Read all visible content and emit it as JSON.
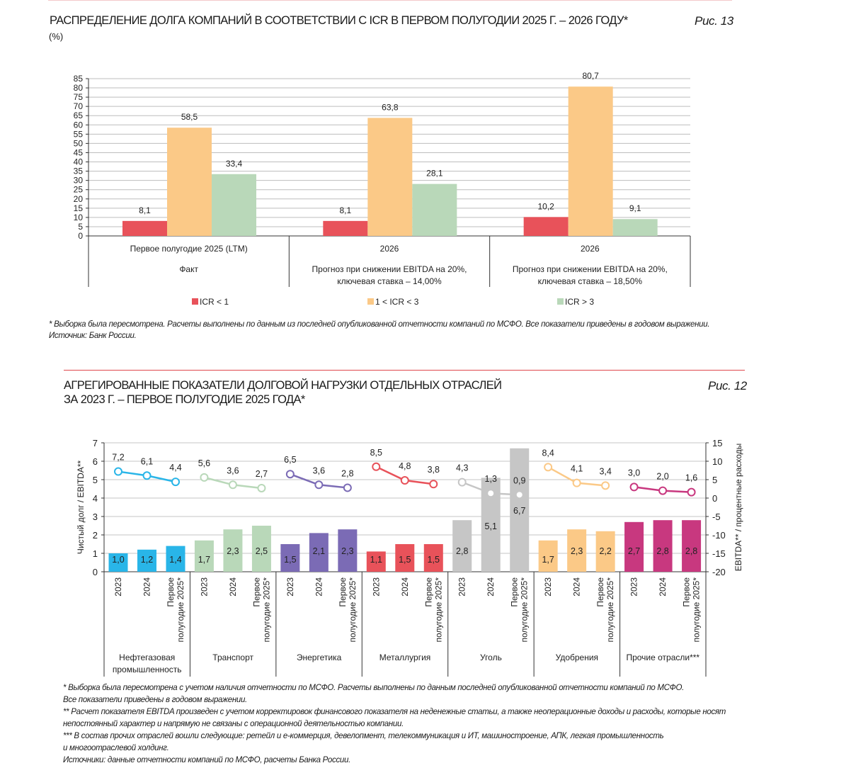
{
  "fig13": {
    "title": "РАСПРЕДЕЛЕНИЕ ДОЛГА КОМПАНИЙ В СООТВЕТСТВИИ С ICR В ПЕРВОМ ПОЛУГОДИИ 2025 Г. – 2026 ГОДУ*",
    "fig_label": "Рис. 13",
    "unit": "(%)",
    "footnote": "*   Выборка была пересмотрена. Расчеты выполнены по данным из последней опубликованной отчетности компаний по МСФО. Все показатели приведены в годовом выражении.",
    "source": "Источник: Банк России."
  },
  "fig12": {
    "title_line1": "АГРЕГИРОВАННЫЕ ПОКАЗАТЕЛИ ДОЛГОВОЙ НАГРУЗКИ ОТДЕЛЬНЫХ ОТРАСЛЕЙ",
    "title_line2": "ЗА 2023 Г. – ПЕРВОЕ ПОЛУГОДИЕ 2025 ГОДА*",
    "fig_label": "Рис. 12",
    "notes": [
      "* Выборка была пересмотрена с учетом наличия отчетности по МСФО. Расчеты выполнены по данным последней опубликованной отчетности компаний по МСФО.",
      "Все показатели приведены в годовом выражении.",
      "** Расчет показателя EBITDA произведен с учетом корректировок финансового показателя на неденежные статьи, а также неоперационные доходы и расходы, которые носят",
      "непостоянный характер и напрямую не связаны с операционной деятельностью компании.",
      "*** В состав прочих отраслей вошли следующие: ретейл и е-коммерция, девелопмент, телекоммуникация и ИТ, машиностроение, АПК, легкая промышленность",
      "и многоотраслевой холдинг.",
      "Источники: данные отчетности компаний по МСФО, расчеты Банка России."
    ]
  },
  "chart_data": [
    {
      "type": "bar",
      "title": "РАСПРЕДЕЛЕНИЕ ДОЛГА КОМПАНИЙ В СООТВЕТСТВИИ С ICR",
      "ylabel": "%",
      "ylim": [
        0,
        85
      ],
      "yticks": [
        0,
        5,
        10,
        15,
        20,
        25,
        30,
        35,
        40,
        45,
        50,
        55,
        60,
        65,
        70,
        75,
        80,
        85
      ],
      "categories": [
        {
          "period": "Первое полугодие 2025 (LTM)",
          "line1": "Факт",
          "line2": ""
        },
        {
          "period": "2026",
          "line1": "Прогноз при снижении EBITDA на 20%,",
          "line2": "ключевая ставка – 14,00%"
        },
        {
          "period": "2026",
          "line1": "Прогноз при снижении EBITDA на 20%,",
          "line2": "ключевая ставка – 18,50%"
        }
      ],
      "series": [
        {
          "name": "ICR < 1",
          "color": "#e8525a",
          "values": [
            8.1,
            8.1,
            10.2
          ],
          "labels": [
            "8,1",
            "8,1",
            "10,2"
          ]
        },
        {
          "name": "1 < ICR < 3",
          "color": "#fbc987",
          "values": [
            58.5,
            63.8,
            80.7
          ],
          "labels": [
            "58,5",
            "63,8",
            "80,7"
          ]
        },
        {
          "name": "ICR > 3",
          "color": "#b9d8b9",
          "values": [
            33.4,
            28.1,
            9.1
          ],
          "labels": [
            "33,4",
            "28,1",
            "9,1"
          ]
        }
      ],
      "legend": "bottom"
    },
    {
      "type": "bar+line",
      "ylabel": "Чистый долг / EBITDA**",
      "y2label": "EBITDA** / процентные расходы",
      "ylim": [
        0,
        7
      ],
      "yticks": [
        0,
        1,
        2,
        3,
        4,
        5,
        6,
        7
      ],
      "y2lim": [
        -20,
        15
      ],
      "y2ticks": [
        -20,
        -15,
        -10,
        -5,
        0,
        5,
        10,
        15
      ],
      "periods": [
        "2023",
        "2024",
        "Первое полугодие 2025*"
      ],
      "period_lines": [
        [
          "2023"
        ],
        [
          "2024"
        ],
        [
          "Первое",
          "полугодие 2025*"
        ]
      ],
      "groups": [
        {
          "name": [
            "Нефтегазовая",
            "промышленность"
          ],
          "color": "#29b5e8",
          "debt_ebitda": [
            1.0,
            1.2,
            1.4
          ],
          "debt_labels": [
            "1,0",
            "1,2",
            "1,4"
          ],
          "icr": [
            7.2,
            6.1,
            4.4
          ],
          "icr_labels": [
            "7,2",
            "6,1",
            "4,4"
          ]
        },
        {
          "name": [
            "Транспорт"
          ],
          "color": "#b9d8b9",
          "debt_ebitda": [
            1.7,
            2.3,
            2.5
          ],
          "debt_labels": [
            "1,7",
            "2,3",
            "2,5"
          ],
          "icr": [
            5.6,
            3.6,
            2.7
          ],
          "icr_labels": [
            "5,6",
            "3,6",
            "2,7"
          ]
        },
        {
          "name": [
            "Энергетика"
          ],
          "color": "#7b6bb5",
          "debt_ebitda": [
            1.5,
            2.1,
            2.3
          ],
          "debt_labels": [
            "1,5",
            "2,1",
            "2,3"
          ],
          "icr": [
            6.5,
            3.6,
            2.8
          ],
          "icr_labels": [
            "6,5",
            "3,6",
            "2,8"
          ]
        },
        {
          "name": [
            "Металлургия"
          ],
          "color": "#e8525a",
          "debt_ebitda": [
            1.1,
            1.5,
            1.5
          ],
          "debt_labels": [
            "1,1",
            "1,5",
            "1,5"
          ],
          "icr": [
            8.5,
            4.8,
            3.8
          ],
          "icr_labels": [
            "8,5",
            "4,8",
            "3,8"
          ]
        },
        {
          "name": [
            "Уголь"
          ],
          "color": "#c6c6c6",
          "debt_ebitda": [
            2.8,
            5.1,
            6.7
          ],
          "debt_labels": [
            "2,8",
            "5,1",
            "6,7"
          ],
          "icr": [
            4.3,
            1.3,
            0.9
          ],
          "icr_labels": [
            "4,3",
            "1,3",
            "0,9"
          ]
        },
        {
          "name": [
            "Удобрения"
          ],
          "color": "#fbc987",
          "debt_ebitda": [
            1.7,
            2.3,
            2.2
          ],
          "debt_labels": [
            "1,7",
            "2,3",
            "2,2"
          ],
          "icr": [
            8.4,
            4.1,
            3.4
          ],
          "icr_labels": [
            "8,4",
            "4,1",
            "3,4"
          ]
        },
        {
          "name": [
            "Прочие отрасли***"
          ],
          "color": "#c8387f",
          "debt_ebitda": [
            2.7,
            2.8,
            2.8
          ],
          "debt_labels": [
            "2,7",
            "2,8",
            "2,8"
          ],
          "icr": [
            3.0,
            2.0,
            1.6
          ],
          "icr_labels": [
            "3,0",
            "2,0",
            "1,6"
          ]
        }
      ]
    }
  ]
}
